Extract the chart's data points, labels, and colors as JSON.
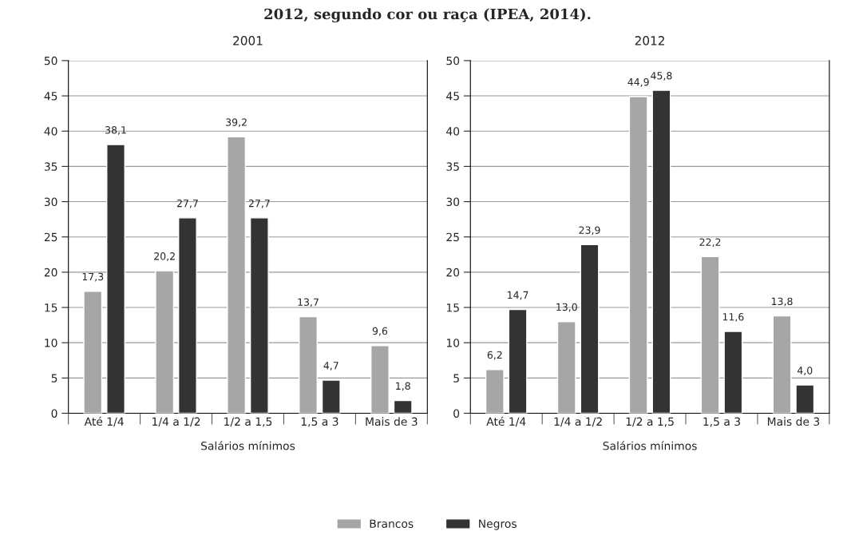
{
  "chart_data": [
    {
      "type": "bar",
      "title": "2001",
      "xlabel": "Salários mínimos",
      "annotations": [
        "2012, segundo cor ou raça (IPEA, 2014)."
      ],
      "categories": [
        "Até 1/4",
        "1/4 a 1/2",
        "1/2 a 1,5",
        "1,5 a 3",
        "Mais de 3"
      ],
      "ylim": [
        0,
        50
      ],
      "yticks": [
        0,
        5,
        10,
        15,
        20,
        25,
        30,
        35,
        40,
        45,
        50
      ],
      "grid": "y",
      "legend": "bottom",
      "series": [
        {
          "name": "Brancos",
          "color": "#a6a6a6",
          "values": [
            17.3,
            20.2,
            39.2,
            13.7,
            9.6
          ],
          "value_labels": [
            "17,3",
            "20,2",
            "39,2",
            "13,7",
            "9,6"
          ]
        },
        {
          "name": "Negros",
          "color": "#333333",
          "values": [
            38.1,
            27.7,
            27.7,
            4.7,
            1.8
          ],
          "value_labels": [
            "38,1",
            "27,7",
            "27,7",
            "4,7",
            "1,8"
          ]
        }
      ]
    },
    {
      "type": "bar",
      "title": "2012",
      "xlabel": "Salários mínimos",
      "categories": [
        "Até 1/4",
        "1/4 a 1/2",
        "1/2 a 1,5",
        "1,5 a 3",
        "Mais de 3"
      ],
      "ylim": [
        0,
        50
      ],
      "yticks": [
        0,
        5,
        10,
        15,
        20,
        25,
        30,
        35,
        40,
        45,
        50
      ],
      "grid": "y",
      "series": [
        {
          "color": "#a6a6a6",
          "values": [
            6.2,
            13.0,
            44.9,
            22.2,
            13.8
          ],
          "value_labels": [
            "6,2",
            "13,0",
            "44,9",
            "22,2",
            "13,8"
          ]
        },
        {
          "color": "#333333",
          "values": [
            14.7,
            23.9,
            45.8,
            11.6,
            4.0
          ],
          "value_labels": [
            "14,7",
            "23,9",
            "45,8",
            "11,6",
            "4,0"
          ]
        }
      ]
    }
  ]
}
